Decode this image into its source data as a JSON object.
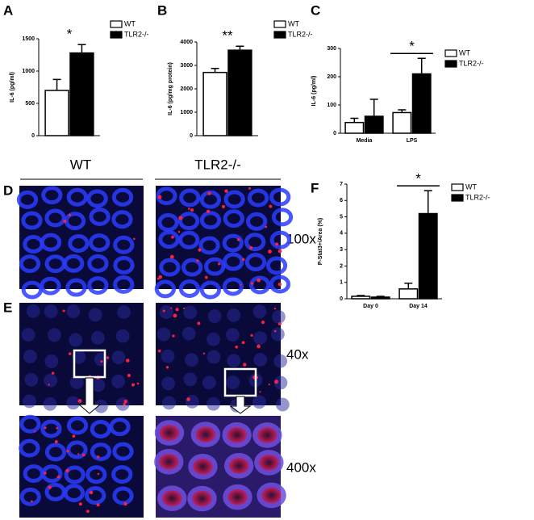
{
  "figure": {
    "columns": [
      "WT",
      "TLR2-/-"
    ],
    "magnifications": [
      "100x",
      "40x",
      "400x"
    ],
    "panels": [
      "D",
      "E"
    ]
  },
  "chart_data": [
    {
      "type": "bar",
      "panel": "A",
      "ylabel": "IL-6 (pg/ml)",
      "categories": [
        null
      ],
      "ylim": [
        0,
        1500
      ],
      "yticks": [
        0,
        500,
        1000,
        1500
      ],
      "annotation": "*",
      "series": [
        {
          "name": "WT",
          "color": "#ffffff",
          "values": [
            700
          ],
          "errors": [
            170
          ]
        },
        {
          "name": "TLR2-/-",
          "color": "#000000",
          "values": [
            1280
          ],
          "errors": [
            130
          ]
        }
      ]
    },
    {
      "type": "bar",
      "panel": "B",
      "ylabel": "IL-6 (pg/mg protein)",
      "categories": [
        null
      ],
      "ylim": [
        0,
        4000
      ],
      "yticks": [
        0,
        1000,
        2000,
        3000,
        4000
      ],
      "annotation": "**",
      "series": [
        {
          "name": "WT",
          "color": "#ffffff",
          "values": [
            2700
          ],
          "errors": [
            170
          ]
        },
        {
          "name": "TLR2-/-",
          "color": "#000000",
          "values": [
            3650
          ],
          "errors": [
            170
          ]
        }
      ]
    },
    {
      "type": "bar",
      "panel": "C",
      "ylabel": "IL-6 (pg/ml)",
      "categories": [
        "Media",
        "LPS"
      ],
      "ylim": [
        0,
        300
      ],
      "yticks": [
        0,
        100,
        200,
        300
      ],
      "annotation": "*",
      "series": [
        {
          "name": "WT",
          "color": "#ffffff",
          "values": [
            38,
            73
          ],
          "errors": [
            15,
            10
          ]
        },
        {
          "name": "TLR2-/-",
          "color": "#000000",
          "values": [
            60,
            210
          ],
          "errors": [
            60,
            55
          ]
        }
      ]
    },
    {
      "type": "bar",
      "panel": "F",
      "ylabel": "P-Stat3+/Area (%)",
      "categories": [
        "Day 0",
        "Day 14"
      ],
      "ylim": [
        0,
        7
      ],
      "yticks": [
        0,
        1,
        2,
        3,
        4,
        5,
        6,
        7
      ],
      "annotation": "*",
      "series": [
        {
          "name": "WT",
          "color": "#ffffff",
          "values": [
            0.15,
            0.6
          ],
          "errors": [
            0.05,
            0.35
          ]
        },
        {
          "name": "TLR2-/-",
          "color": "#000000",
          "values": [
            0.1,
            5.2
          ],
          "errors": [
            0.05,
            1.4
          ]
        }
      ]
    }
  ]
}
